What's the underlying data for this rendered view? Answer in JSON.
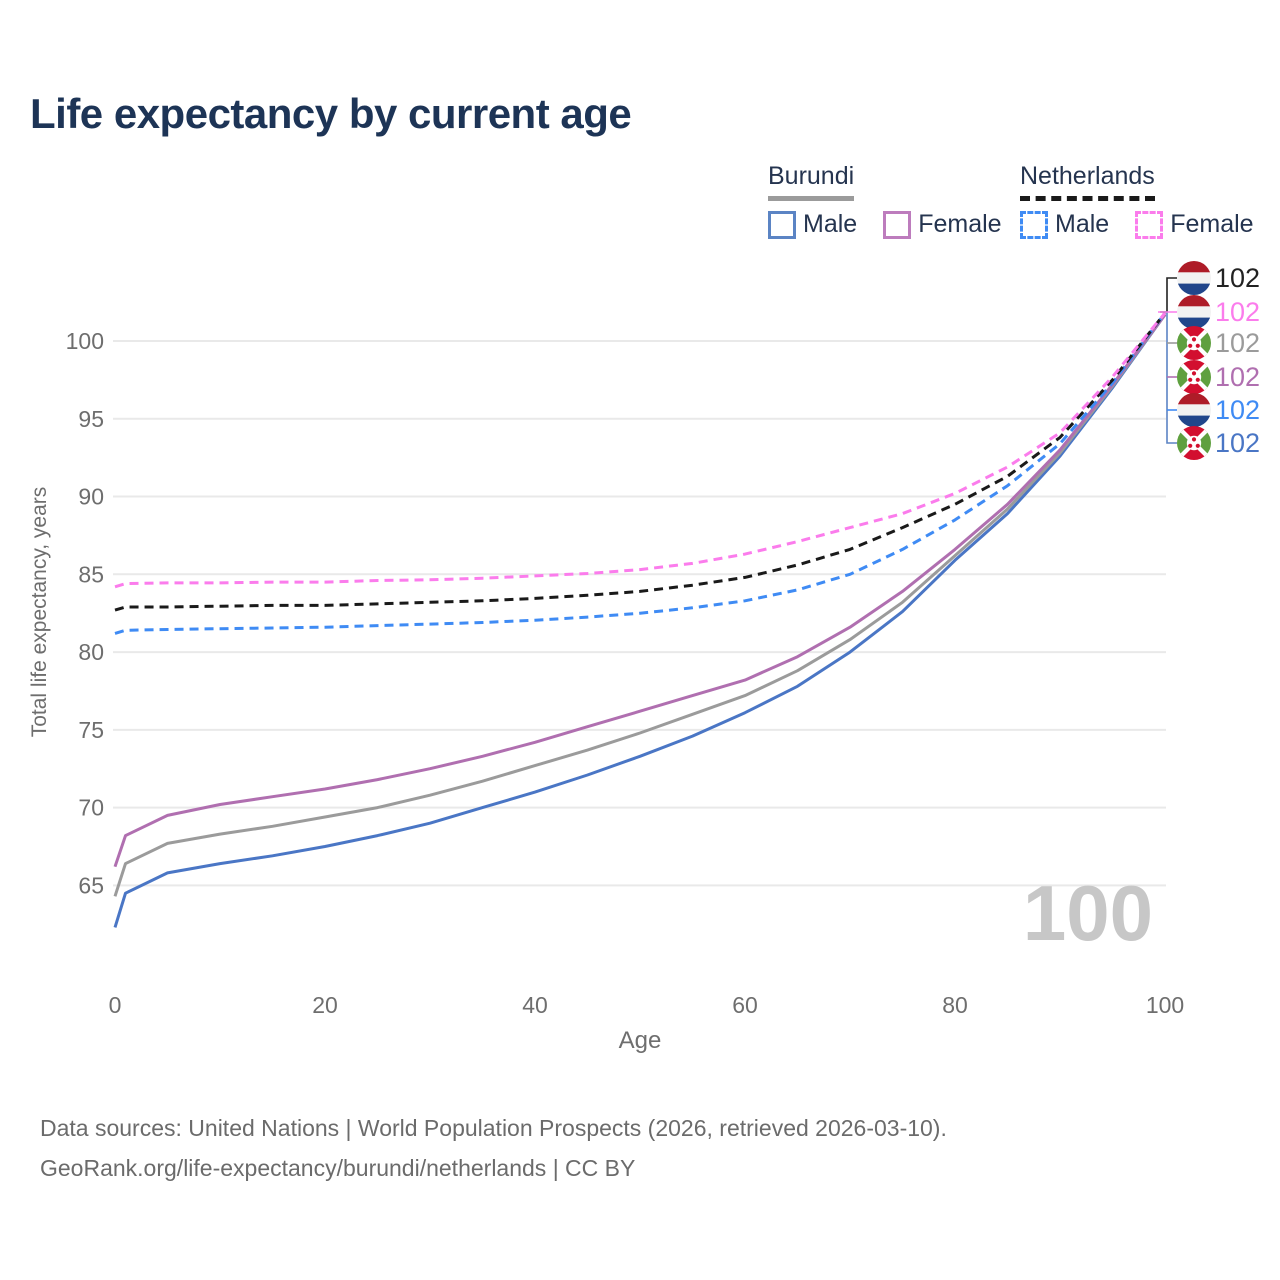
{
  "title": {
    "text": "Life expectancy by current age",
    "color": "#1d3456"
  },
  "legend": {
    "groups": [
      {
        "name": "Burundi",
        "line_style": "solid",
        "line_color": "#9b9b9b",
        "items": [
          {
            "label": "Male",
            "swatch_color": "#5b84c4",
            "swatch_style": "solid"
          },
          {
            "label": "Female",
            "swatch_color": "#bd7cbd",
            "swatch_style": "solid"
          }
        ]
      },
      {
        "name": "Netherlands",
        "line_style": "dashed",
        "line_color": "#1a1a1a",
        "items": [
          {
            "label": "Male",
            "swatch_color": "#3f8bf4",
            "swatch_style": "dashed"
          },
          {
            "label": "Female",
            "swatch_color": "#fb7cec",
            "swatch_style": "dashed"
          }
        ]
      }
    ]
  },
  "chart_data": {
    "type": "line",
    "title": "Life expectancy by current age",
    "xlabel": "Age",
    "ylabel": "Total life expectancy, years",
    "xlim": [
      0,
      100
    ],
    "ylim": [
      61,
      103
    ],
    "x_ticks": [
      0,
      20,
      40,
      60,
      80,
      100
    ],
    "y_ticks": [
      65,
      70,
      75,
      80,
      85,
      90,
      95,
      100
    ],
    "grid": "horizontal",
    "legend_position": "top-right",
    "x": [
      0,
      1,
      5,
      10,
      15,
      20,
      25,
      30,
      35,
      40,
      45,
      50,
      55,
      60,
      65,
      70,
      75,
      80,
      85,
      90,
      95,
      100
    ],
    "series": [
      {
        "name": "Burundi Male",
        "country": "burundi",
        "sex": "male",
        "style": "solid",
        "color": "#4a76c5",
        "values": [
          62.3,
          64.5,
          65.8,
          66.4,
          66.9,
          67.5,
          68.2,
          69.0,
          70.0,
          71.0,
          72.1,
          73.3,
          74.6,
          76.1,
          77.8,
          80.0,
          82.6,
          85.9,
          88.9,
          92.6,
          97.0,
          101.7
        ]
      },
      {
        "name": "Burundi Total",
        "country": "burundi",
        "sex": "both",
        "style": "solid",
        "color": "#9b9b9b",
        "values": [
          64.3,
          66.4,
          67.7,
          68.3,
          68.8,
          69.4,
          70.0,
          70.8,
          71.7,
          72.7,
          73.7,
          74.8,
          76.0,
          77.2,
          78.8,
          80.8,
          83.2,
          86.2,
          89.2,
          92.8,
          97.1,
          101.7
        ]
      },
      {
        "name": "Burundi Female",
        "country": "burundi",
        "sex": "female",
        "style": "solid",
        "color": "#b06fb0",
        "values": [
          66.2,
          68.2,
          69.5,
          70.2,
          70.7,
          71.2,
          71.8,
          72.5,
          73.3,
          74.2,
          75.2,
          76.2,
          77.2,
          78.2,
          79.7,
          81.6,
          83.9,
          86.6,
          89.5,
          93.0,
          97.2,
          101.7
        ]
      },
      {
        "name": "Netherlands Male",
        "country": "netherlands",
        "sex": "male",
        "style": "dashed",
        "color": "#3f8bf4",
        "values": [
          81.2,
          81.4,
          81.45,
          81.5,
          81.55,
          81.6,
          81.7,
          81.8,
          81.9,
          82.05,
          82.25,
          82.5,
          82.85,
          83.3,
          84.0,
          85.0,
          86.6,
          88.5,
          90.7,
          93.4,
          97.3,
          101.8
        ]
      },
      {
        "name": "Netherlands Total",
        "country": "netherlands",
        "sex": "both",
        "style": "dashed",
        "color": "#1a1a1a",
        "values": [
          82.7,
          82.9,
          82.9,
          82.95,
          83.0,
          83.0,
          83.1,
          83.2,
          83.3,
          83.45,
          83.65,
          83.9,
          84.3,
          84.8,
          85.6,
          86.6,
          88.0,
          89.5,
          91.3,
          93.8,
          97.5,
          101.8
        ]
      },
      {
        "name": "Netherlands Female",
        "country": "netherlands",
        "sex": "female",
        "style": "dashed",
        "color": "#fb7cec",
        "values": [
          84.2,
          84.4,
          84.45,
          84.45,
          84.5,
          84.5,
          84.6,
          84.65,
          84.75,
          84.9,
          85.05,
          85.3,
          85.7,
          86.3,
          87.1,
          88.0,
          88.9,
          90.2,
          91.9,
          94.1,
          97.7,
          101.8
        ]
      }
    ],
    "end_labels": [
      {
        "flag": "netherlands",
        "value": "102",
        "color": "#222222"
      },
      {
        "flag": "netherlands",
        "value": "102",
        "color": "#fb7cec"
      },
      {
        "flag": "burundi",
        "value": "102",
        "color": "#9b9b9b"
      },
      {
        "flag": "burundi",
        "value": "102",
        "color": "#b06fb0"
      },
      {
        "flag": "netherlands",
        "value": "102",
        "color": "#3f8bf4"
      },
      {
        "flag": "burundi",
        "value": "102",
        "color": "#4a76c5"
      }
    ],
    "watermark": "100"
  },
  "footer": {
    "line1": "Data sources: United Nations | World Population Prospects (2026, retrieved 2026-03-10).",
    "line2": "GeoRank.org/life-expectancy/burundi/netherlands | CC BY"
  }
}
